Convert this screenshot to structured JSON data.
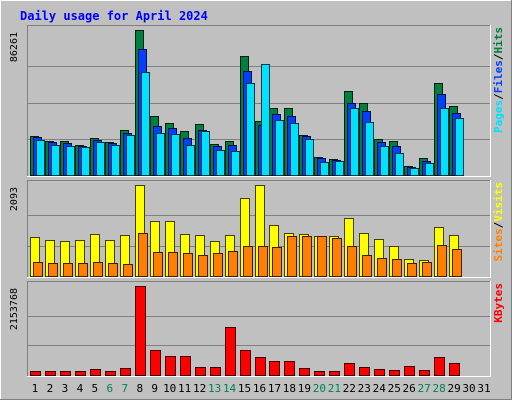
{
  "chart_data": {
    "type": "bar",
    "title": "Daily usage for April 2024",
    "categories": [
      "1",
      "2",
      "3",
      "4",
      "5",
      "6",
      "7",
      "8",
      "9",
      "10",
      "11",
      "12",
      "13",
      "14",
      "15",
      "16",
      "17",
      "18",
      "19",
      "20",
      "21",
      "22",
      "23",
      "24",
      "25",
      "26",
      "27",
      "28",
      "29",
      "30",
      "31"
    ],
    "weekend_days": [
      "6",
      "7",
      "13",
      "14",
      "20",
      "21",
      "27",
      "28"
    ],
    "colors": {
      "hits": "#008040",
      "files": "#0040ff",
      "pages": "#00e0ff",
      "visits": "#ffff00",
      "sites": "#ff8000",
      "kbytes": "#ff0000",
      "title": "#0000ff",
      "weekend_label": "#00805c",
      "weekday_label": "#000000"
    },
    "panels": [
      {
        "id": "top",
        "ytick_label": "86261",
        "ymax": 86261,
        "legend": [
          {
            "text": "Pages",
            "color": "#00e0ff"
          },
          {
            "text": "/",
            "color": "#000000"
          },
          {
            "text": "Files",
            "color": "#0040ff"
          },
          {
            "text": "/",
            "color": "#000000"
          },
          {
            "text": "Hits",
            "color": "#008040"
          }
        ],
        "series": [
          {
            "name": "Hits",
            "color": "#008040",
            "values": [
              23000,
              20000,
              20000,
              18000,
              22000,
              19500,
              27000,
              86261,
              35000,
              31000,
              26000,
              30500,
              18500,
              20000,
              71000,
              32000,
              40000,
              40000,
              24000,
              10500,
              9500,
              50000,
              43000,
              21500,
              20500,
              5500,
              10000,
              55000,
              41000,
              0,
              0
            ]
          },
          {
            "name": "Files",
            "color": "#0040ff",
            "values": [
              22500,
              19500,
              19000,
              17500,
              21000,
              19000,
              25000,
              75000,
              29000,
              28000,
              22000,
              27000,
              17500,
              18000,
              62000,
              30000,
              36000,
              35000,
              23000,
              10000,
              9000,
              43000,
              38000,
              19500,
              17000,
              5000,
              8500,
              48000,
              37000,
              0,
              0
            ]
          },
          {
            "name": "Pages",
            "color": "#00e0ff",
            "values": [
              21000,
              18000,
              17500,
              16500,
              19500,
              18000,
              24000,
              61000,
              25000,
              24500,
              18000,
              26000,
              15000,
              14000,
              55000,
              66000,
              33000,
              31000,
              21500,
              7500,
              8500,
              40000,
              31500,
              17000,
              13000,
              4000,
              7000,
              40000,
              34000,
              0,
              0
            ]
          }
        ]
      },
      {
        "id": "middle",
        "ytick_label": "2093",
        "ymax": 2093,
        "legend": [
          {
            "text": "Sites",
            "color": "#ff8000"
          },
          {
            "text": "/",
            "color": "#000000"
          },
          {
            "text": "Visits",
            "color": "#ffff00"
          }
        ],
        "series": [
          {
            "name": "Visits",
            "color": "#ffff00",
            "values": [
              900,
              820,
              800,
              820,
              960,
              830,
              950,
              2093,
              1260,
              1270,
              970,
              940,
              810,
              950,
              1800,
              2093,
              1180,
              990,
              960,
              930,
              920,
              1340,
              990,
              840,
              690,
              390,
              370,
              1130,
              950,
              0,
              0
            ]
          },
          {
            "name": "Sites",
            "color": "#ff8000",
            "values": [
              320,
              300,
              300,
              300,
              320,
              310,
              280,
              1000,
              560,
              560,
              530,
              490,
              540,
              570,
              690,
              690,
              670,
              920,
              930,
              920,
              870,
              690,
              480,
              410,
              380,
              300,
              320,
              710,
              620,
              0,
              0
            ]
          }
        ]
      },
      {
        "id": "bottom",
        "ytick_label": "2153768",
        "ymax": 2153768,
        "legend": [
          {
            "text": "KBytes",
            "color": "#ff0000"
          }
        ],
        "series": [
          {
            "name": "KBytes",
            "color": "#ff0000",
            "values": [
              105000,
              92000,
              105000,
              100000,
              145000,
              102000,
              177000,
              2153768,
              600000,
              450000,
              450000,
              190000,
              186000,
              1150000,
              600000,
              440000,
              330000,
              330000,
              180000,
              92000,
              92000,
              300000,
              185000,
              150000,
              126000,
              206000,
              130000,
              445000,
              296000,
              0,
              0
            ]
          }
        ]
      }
    ]
  }
}
